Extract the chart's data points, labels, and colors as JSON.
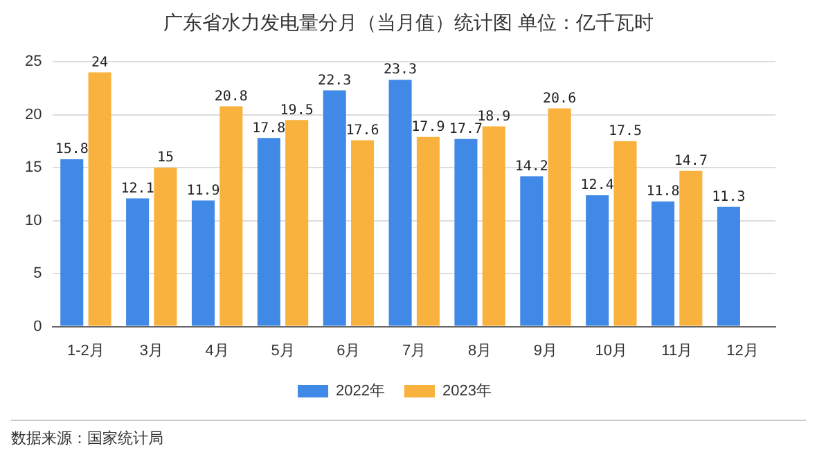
{
  "chart_data": {
    "type": "bar",
    "title": "广东省水力发电量分月（当月值）统计图 单位：亿千瓦时",
    "categories": [
      "1-2月",
      "3月",
      "4月",
      "5月",
      "6月",
      "7月",
      "8月",
      "9月",
      "10月",
      "11月",
      "12月"
    ],
    "series": [
      {
        "name": "2022年",
        "color": "#4089e6",
        "values": [
          15.8,
          12.1,
          11.9,
          17.8,
          22.3,
          23.3,
          17.7,
          14.2,
          12.4,
          11.8,
          11.3
        ]
      },
      {
        "name": "2023年",
        "color": "#f9b23d",
        "values": [
          24,
          15,
          20.8,
          19.5,
          17.6,
          17.9,
          18.9,
          20.6,
          17.5,
          14.7,
          null
        ]
      }
    ],
    "ylim": [
      0,
      25
    ],
    "yticks": [
      0,
      5,
      10,
      15,
      20,
      25
    ],
    "grid": "y",
    "legend": "bottom",
    "data_labels": true,
    "annotations": [
      "数据来源：国家统计局"
    ]
  }
}
